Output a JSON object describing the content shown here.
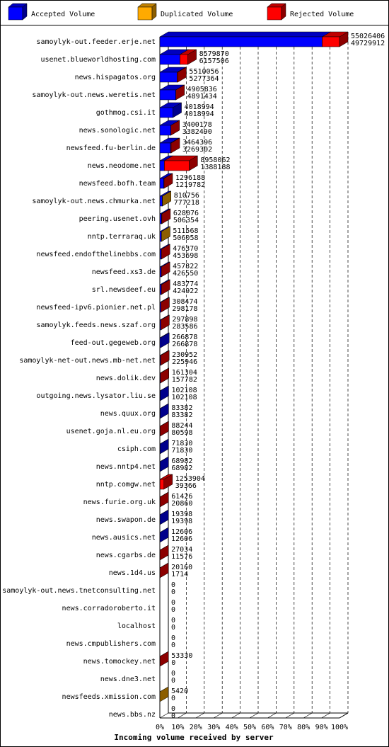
{
  "chart_data": {
    "type": "bar3d",
    "series": [
      {
        "name": "Accepted Volume",
        "color": "#0000ff"
      },
      {
        "name": "Duplicated Volume",
        "color": "#ffaa00"
      },
      {
        "name": "Rejected Volume",
        "color": "#ff0000"
      }
    ],
    "categories": [
      "samoylyk-out.feeder.erje.net",
      "usenet.blueworldhosting.com",
      "news.hispagatos.org",
      "samoylyk-out.news.weretis.net",
      "gothmog.csi.it",
      "news.sonologic.net",
      "newsfeed.fu-berlin.de",
      "news.neodome.net",
      "newsfeed.bofh.team",
      "samoylyk-out.news.chmurka.net",
      "peering.usenet.ovh",
      "nntp.terraraq.uk",
      "newsfeed.endofthelinebbs.com",
      "newsfeed.xs3.de",
      "srl.newsdeef.eu",
      "newsfeed-ipv6.pionier.net.pl",
      "samoylyk.feeds.news.szaf.org",
      "feed-out.gegeweb.org",
      "samoylyk-net-out.news.mb-net.net",
      "news.dolik.dev",
      "outgoing.news.lysator.liu.se",
      "news.quux.org",
      "usenet.goja.nl.eu.org",
      "csiph.com",
      "news.nntp4.net",
      "nntp.comgw.net",
      "news.furie.org.uk",
      "news.swapon.de",
      "news.ausics.net",
      "news.cgarbs.de",
      "news.1d4.us",
      "samoylyk-out.news.tnetconsulting.net",
      "news.corradoroberto.it",
      "localhost",
      "news.cmpublishers.com",
      "news.tomockey.net",
      "news.dne3.net",
      "newsfeeds.xmission.com",
      "news.bbs.nz"
    ],
    "totals": [
      55026406,
      8579870,
      5510056,
      4905836,
      4018994,
      3400178,
      3464396,
      8958062,
      1296188,
      810756,
      628076,
      511568,
      476370,
      457822,
      483774,
      308474,
      297898,
      266878,
      230952,
      161304,
      102108,
      83382,
      88244,
      71830,
      68982,
      1253904,
      61426,
      19398,
      12606,
      27034,
      20160,
      0,
      0,
      0,
      0,
      53330,
      0,
      5420,
      0
    ],
    "accepted": [
      49729912,
      6157506,
      5277364,
      4891434,
      4018994,
      3382490,
      3269302,
      1388188,
      1219782,
      777218,
      506354,
      506058,
      453698,
      426550,
      424922,
      298178,
      283586,
      266878,
      225946,
      157782,
      102108,
      83382,
      80598,
      71830,
      68982,
      39366,
      20860,
      19398,
      12606,
      11576,
      1714,
      0,
      0,
      0,
      0,
      0,
      0,
      0,
      0
    ],
    "rest_colors": [
      "#ff0000",
      "#ff0000",
      "#ff0000",
      "#ff0000",
      "#ff0000",
      "#ff0000",
      "#ff0000",
      "#ff0000",
      "#ff0000",
      "#ffaa00",
      "#ff0000",
      "#ffaa00",
      "#ff0000",
      "#ff0000",
      "#ff0000",
      "#ff0000",
      "#ff0000",
      "#ff0000",
      "#ff0000",
      "#ff0000",
      "#ff0000",
      "#ff0000",
      "#ff0000",
      "#ff0000",
      "#ff0000",
      "#ff0000",
      "#ff0000",
      "#ff0000",
      "#ff0000",
      "#ff0000",
      "#ff0000",
      "#ff0000",
      "#ff0000",
      "#ff0000",
      "#ff0000",
      "#ff0000",
      "#ff0000",
      "#ffaa00",
      "#ff0000"
    ],
    "xlim": [
      0,
      55026406
    ],
    "xticks": [
      {
        "value": 0,
        "label": "0%"
      },
      {
        "value": 5502640.6,
        "label": "10%"
      },
      {
        "value": 11005281.2,
        "label": "20%"
      },
      {
        "value": 16507921.8,
        "label": "30%"
      },
      {
        "value": 22010562.4,
        "label": "40%"
      },
      {
        "value": 27513203,
        "label": "50%"
      },
      {
        "value": 33015843.6,
        "label": "60%"
      },
      {
        "value": 38518484.2,
        "label": "70%"
      },
      {
        "value": 44021124.8,
        "label": "80%"
      },
      {
        "value": 49523765.4,
        "label": "90%"
      },
      {
        "value": 55026406,
        "label": "100%"
      }
    ],
    "x_label": "Incoming volume received by server",
    "grid": true
  }
}
